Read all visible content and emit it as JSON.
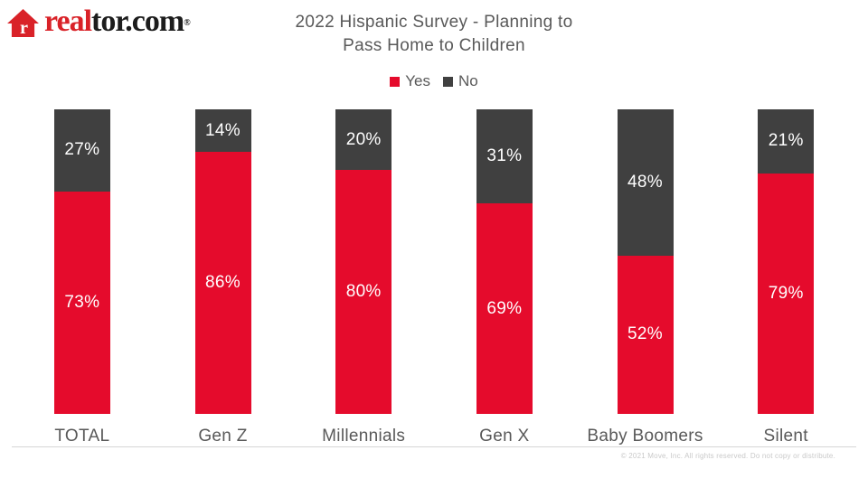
{
  "logo": {
    "brand_prefix": "real",
    "brand_suffix": "tor.com",
    "registered_mark": "®",
    "icon": "house-icon"
  },
  "title": {
    "line1": "2022 Hispanic Survey - Planning to",
    "line2": "Pass Home to Children"
  },
  "footnote": "© 2021 Move, Inc. All rights reserved. Do not copy or distribute.",
  "colors": {
    "yes_red": "#e50b2c",
    "no_gray": "#404040",
    "logo_red": "#d92228",
    "logo_black": "#1c1c1c",
    "text_gray": "#595959",
    "axis_line": "#d6d6d6",
    "watermark_gray": "#c9c9c9",
    "label_white": "#ffffff"
  },
  "chart_data": {
    "type": "bar",
    "stacked": true,
    "title": "2022 Hispanic Survey - Planning to Pass Home to Children",
    "categories": [
      "TOTAL",
      "Gen Z",
      "Millennials",
      "Gen X",
      "Baby Boomers",
      "Silent"
    ],
    "series": [
      {
        "name": "Yes",
        "color": "#e50b2c",
        "values": [
          73,
          86,
          80,
          69,
          52,
          79
        ]
      },
      {
        "name": "No",
        "color": "#404040",
        "values": [
          27,
          14,
          20,
          31,
          48,
          21
        ]
      }
    ],
    "value_suffix": "%",
    "xlabel": "",
    "ylabel": "",
    "ylim": [
      0,
      100
    ],
    "grid": false,
    "legend_position": "top",
    "bar_label_position": "segment-center"
  }
}
